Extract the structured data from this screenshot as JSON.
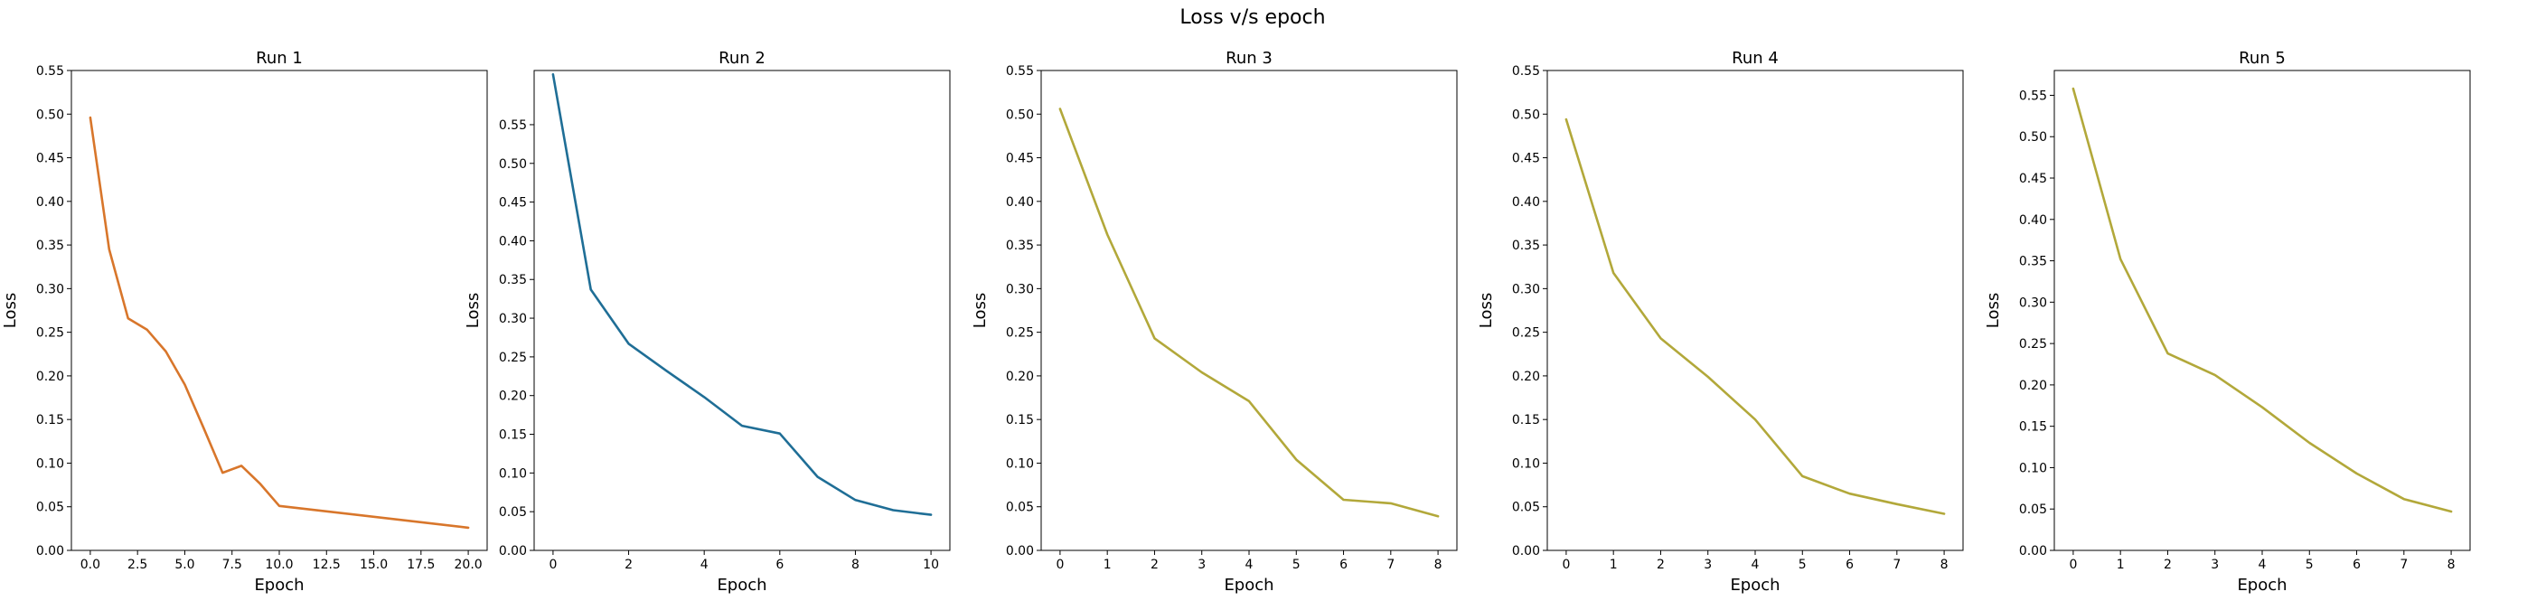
{
  "figure": {
    "title": "Loss v/s epoch"
  },
  "chart_data": [
    {
      "type": "line",
      "title": "Run 1",
      "xlabel": "Epoch",
      "ylabel": "Loss",
      "xlim": [
        -1,
        21
      ],
      "ylim": [
        0,
        0.55
      ],
      "xticks": [
        0,
        2.5,
        5,
        7.5,
        10,
        12.5,
        15,
        17.5,
        20
      ],
      "xtick_labels": [
        "0.0",
        "2.5",
        "5.0",
        "7.5",
        "10.0",
        "12.5",
        "15.0",
        "17.5",
        "20.0"
      ],
      "yticks": [
        0,
        0.05,
        0.1,
        0.15,
        0.2,
        0.25,
        0.3,
        0.35,
        0.4,
        0.45,
        0.5,
        0.55
      ],
      "ytick_labels": [
        "0.00",
        "0.05",
        "0.10",
        "0.15",
        "0.20",
        "0.25",
        "0.30",
        "0.35",
        "0.40",
        "0.45",
        "0.50",
        "0.55"
      ],
      "color": "#d8762b",
      "grid": false,
      "series": [
        {
          "x": [
            0,
            1,
            2,
            3,
            4,
            5,
            6,
            7,
            8,
            9,
            10,
            20
          ],
          "values": [
            0.496,
            0.345,
            0.266,
            0.253,
            0.228,
            0.19,
            0.14,
            0.089,
            0.097,
            0.076,
            0.051,
            0.026
          ]
        }
      ]
    },
    {
      "type": "line",
      "title": "Run 2",
      "xlabel": "Epoch",
      "ylabel": "Loss",
      "xlim": [
        -0.5,
        10.5
      ],
      "ylim": [
        0,
        0.62
      ],
      "xticks": [
        0,
        2,
        4,
        6,
        8,
        10
      ],
      "xtick_labels": [
        "0",
        "2",
        "4",
        "6",
        "8",
        "10"
      ],
      "yticks": [
        0,
        0.05,
        0.1,
        0.15,
        0.2,
        0.25,
        0.3,
        0.35,
        0.4,
        0.45,
        0.5,
        0.55
      ],
      "ytick_labels": [
        "0.00",
        "0.05",
        "0.10",
        "0.15",
        "0.20",
        "0.25",
        "0.30",
        "0.35",
        "0.40",
        "0.45",
        "0.50",
        "0.55"
      ],
      "color": "#1f6e96",
      "grid": false,
      "series": [
        {
          "x": [
            0,
            1,
            2,
            3,
            4,
            5,
            6,
            7,
            8,
            9,
            10
          ],
          "values": [
            0.615,
            0.337,
            0.267,
            0.232,
            0.198,
            0.161,
            0.151,
            0.095,
            0.065,
            0.052,
            0.046
          ]
        }
      ]
    },
    {
      "type": "line",
      "title": "Run 3",
      "xlabel": "Epoch",
      "ylabel": "Loss",
      "xlim": [
        -0.4,
        8.4
      ],
      "ylim": [
        0,
        0.55
      ],
      "xticks": [
        0,
        1,
        2,
        3,
        4,
        5,
        6,
        7,
        8
      ],
      "xtick_labels": [
        "0",
        "1",
        "2",
        "3",
        "4",
        "5",
        "6",
        "7",
        "8"
      ],
      "yticks": [
        0,
        0.05,
        0.1,
        0.15,
        0.2,
        0.25,
        0.3,
        0.35,
        0.4,
        0.45,
        0.5,
        0.55
      ],
      "ytick_labels": [
        "0.00",
        "0.05",
        "0.10",
        "0.15",
        "0.20",
        "0.25",
        "0.30",
        "0.35",
        "0.40",
        "0.45",
        "0.50",
        "0.55"
      ],
      "color": "#b2a83a",
      "grid": false,
      "series": [
        {
          "x": [
            0,
            1,
            2,
            3,
            4,
            5,
            6,
            7,
            8
          ],
          "values": [
            0.506,
            0.362,
            0.243,
            0.204,
            0.171,
            0.104,
            0.058,
            0.054,
            0.039
          ]
        }
      ]
    },
    {
      "type": "line",
      "title": "Run 4",
      "xlabel": "Epoch",
      "ylabel": "Loss",
      "xlim": [
        -0.4,
        8.4
      ],
      "ylim": [
        0,
        0.55
      ],
      "xticks": [
        0,
        1,
        2,
        3,
        4,
        5,
        6,
        7,
        8
      ],
      "xtick_labels": [
        "0",
        "1",
        "2",
        "3",
        "4",
        "5",
        "6",
        "7",
        "8"
      ],
      "yticks": [
        0,
        0.05,
        0.1,
        0.15,
        0.2,
        0.25,
        0.3,
        0.35,
        0.4,
        0.45,
        0.5,
        0.55
      ],
      "ytick_labels": [
        "0.00",
        "0.05",
        "0.10",
        "0.15",
        "0.20",
        "0.25",
        "0.30",
        "0.35",
        "0.40",
        "0.45",
        "0.50",
        "0.55"
      ],
      "color": "#b2a83a",
      "grid": false,
      "series": [
        {
          "x": [
            0,
            1,
            2,
            3,
            4,
            5,
            6,
            7,
            8
          ],
          "values": [
            0.494,
            0.318,
            0.243,
            0.199,
            0.15,
            0.085,
            0.065,
            0.053,
            0.042
          ]
        }
      ]
    },
    {
      "type": "line",
      "title": "Run 5",
      "xlabel": "Epoch",
      "ylabel": "Loss",
      "xlim": [
        -0.4,
        8.4
      ],
      "ylim": [
        0,
        0.58
      ],
      "xticks": [
        0,
        1,
        2,
        3,
        4,
        5,
        6,
        7,
        8
      ],
      "xtick_labels": [
        "0",
        "1",
        "2",
        "3",
        "4",
        "5",
        "6",
        "7",
        "8"
      ],
      "yticks": [
        0,
        0.05,
        0.1,
        0.15,
        0.2,
        0.25,
        0.3,
        0.35,
        0.4,
        0.45,
        0.5,
        0.55
      ],
      "ytick_labels": [
        "0.00",
        "0.05",
        "0.10",
        "0.15",
        "0.20",
        "0.25",
        "0.30",
        "0.35",
        "0.40",
        "0.45",
        "0.50",
        "0.55"
      ],
      "color": "#b2a83a",
      "grid": false,
      "series": [
        {
          "x": [
            0,
            1,
            2,
            3,
            4,
            5,
            6,
            7,
            8
          ],
          "values": [
            0.558,
            0.352,
            0.238,
            0.212,
            0.173,
            0.13,
            0.093,
            0.062,
            0.047
          ]
        }
      ]
    }
  ]
}
